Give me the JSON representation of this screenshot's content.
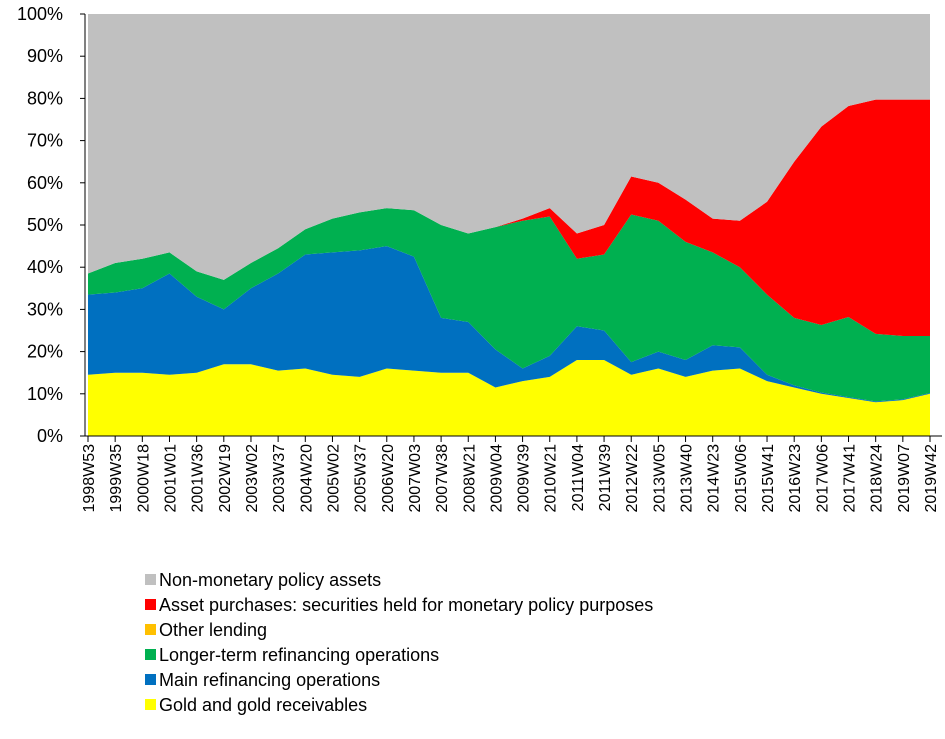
{
  "chart_data": {
    "type": "stacked_area",
    "categories": [
      "1998W53",
      "1999W35",
      "2000W18",
      "2001W01",
      "2001W36",
      "2002W19",
      "2003W02",
      "2003W37",
      "2004W20",
      "2005W02",
      "2005W37",
      "2006W20",
      "2007W03",
      "2007W38",
      "2008W21",
      "2009W04",
      "2009W39",
      "2010W21",
      "2011W04",
      "2011W39",
      "2012W22",
      "2013W05",
      "2013W40",
      "2014W23",
      "2015W06",
      "2015W41",
      "2016W23",
      "2017W06",
      "2017W41",
      "2018W24",
      "2019W07",
      "2019W42"
    ],
    "series": [
      {
        "name": "Non-monetary policy assets",
        "color": "#c0c0c0",
        "values": [
          61.5,
          59,
          58,
          56.5,
          61,
          63,
          59,
          55.5,
          51,
          48.5,
          47,
          46,
          46.5,
          50,
          52,
          50.5,
          48.5,
          46,
          52,
          50,
          38.5,
          40,
          44,
          48.5,
          49,
          44.5,
          35,
          26.7,
          21.8,
          20.3,
          20.3,
          20.3
        ]
      },
      {
        "name": "Asset purchases: securities held for monetary policy purposes",
        "color": "#ff0000",
        "values": [
          0,
          0,
          0,
          0,
          0,
          0,
          0,
          0,
          0,
          0,
          0,
          0,
          0,
          0,
          0,
          0,
          0.5,
          2,
          6,
          7,
          9,
          9,
          10,
          8,
          11,
          22,
          37,
          47,
          50,
          55.5,
          56,
          56
        ]
      },
      {
        "name": "Other lending",
        "color": "#ffc000",
        "values": [
          0,
          0,
          0,
          0,
          0,
          0,
          0,
          0,
          0,
          0,
          0,
          0,
          0,
          0,
          0,
          0,
          0,
          0,
          0,
          0,
          0,
          0,
          0,
          0,
          0,
          0,
          0,
          0,
          0,
          0,
          0,
          0
        ]
      },
      {
        "name": "Longer-term refinancing operations",
        "color": "#00b050",
        "values": [
          5,
          7,
          7,
          5,
          6,
          7,
          6,
          6,
          6,
          8,
          9,
          9,
          11,
          22,
          21,
          29,
          35,
          33,
          16,
          18,
          35,
          31,
          28,
          22,
          19,
          19,
          16,
          16,
          19,
          16,
          15,
          13.5
        ]
      },
      {
        "name": "Main refinancing operations",
        "color": "#0070c0",
        "values": [
          19,
          19,
          20,
          24,
          18,
          13,
          18,
          23,
          27,
          29,
          30,
          29,
          27,
          13,
          12,
          9,
          3,
          5,
          8,
          7,
          3,
          4,
          4,
          6,
          5,
          1.5,
          0.5,
          0.3,
          0.2,
          0.2,
          0.2,
          0.2
        ]
      },
      {
        "name": "Gold and gold receivables",
        "color": "#ffff00",
        "values": [
          14.5,
          15,
          15,
          14.5,
          15,
          17,
          17,
          15.5,
          16,
          14.5,
          14,
          16,
          15.5,
          15,
          15,
          11.5,
          13,
          14,
          18,
          18,
          14.5,
          16,
          14,
          15.5,
          16,
          13,
          11.5,
          10,
          9,
          8,
          8.5,
          10
        ]
      }
    ],
    "ylim": [
      0,
      100
    ],
    "yticks": [
      {
        "value": 0,
        "label": "0%"
      },
      {
        "value": 10,
        "label": "10%"
      },
      {
        "value": 20,
        "label": "20%"
      },
      {
        "value": 30,
        "label": "30%"
      },
      {
        "value": 40,
        "label": "40%"
      },
      {
        "value": 50,
        "label": "50%"
      },
      {
        "value": 60,
        "label": "60%"
      },
      {
        "value": 70,
        "label": "70%"
      },
      {
        "value": 80,
        "label": "80%"
      },
      {
        "value": 90,
        "label": "90%"
      },
      {
        "value": 100,
        "label": "100%"
      }
    ],
    "legend": "bottom"
  }
}
